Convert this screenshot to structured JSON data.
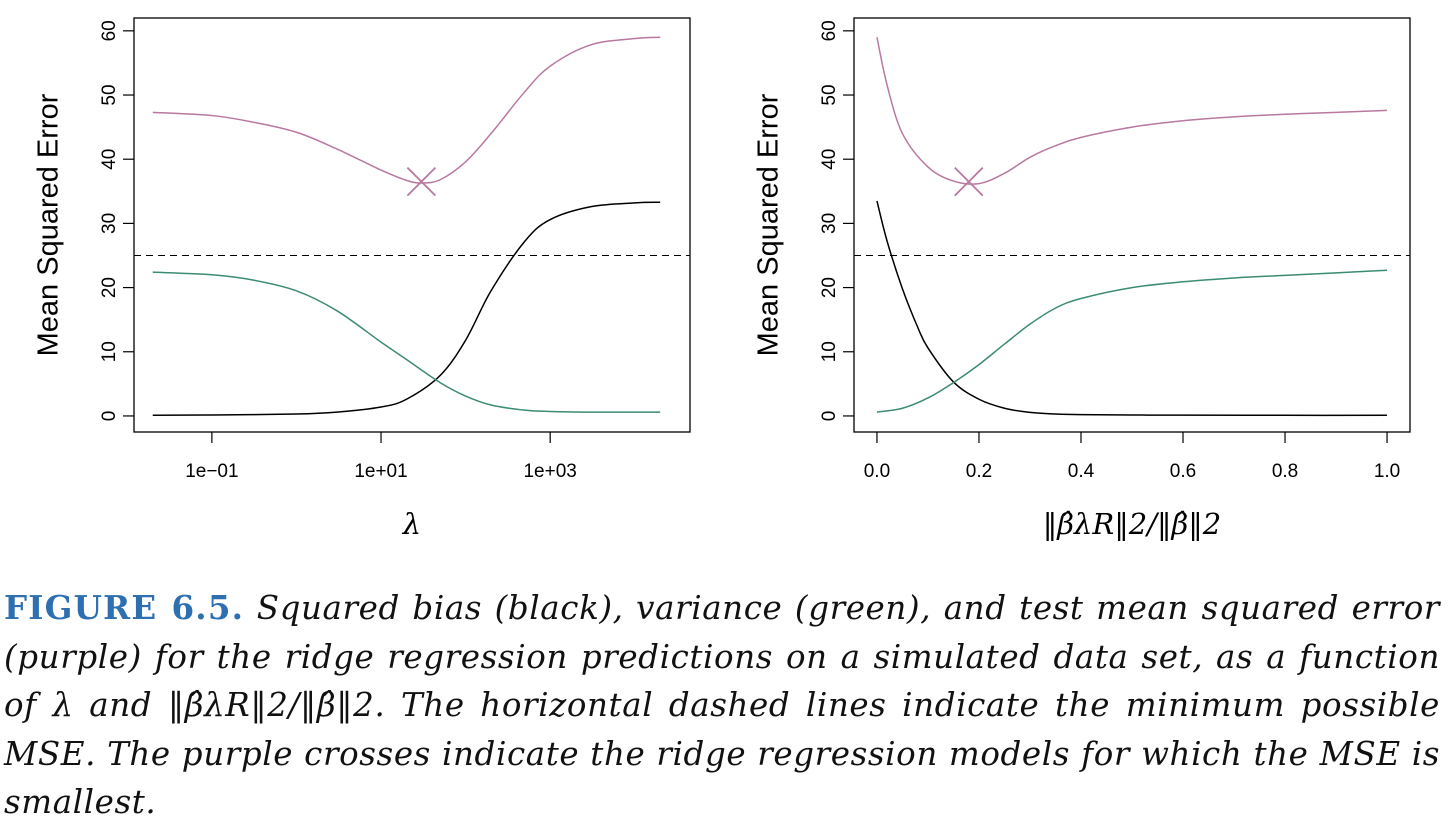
{
  "chart_data": [
    {
      "type": "line",
      "ylabel": "Mean Squared Error",
      "xlabel": "λ",
      "x_scale": "log10",
      "xlim": [
        0.012,
        45000
      ],
      "ylim": [
        -2.5,
        62
      ],
      "x_ticks": [
        0.1,
        10,
        1000
      ],
      "x_tick_labels": [
        "1e−01",
        "1e+01",
        "1e+03"
      ],
      "y_ticks": [
        0,
        10,
        20,
        30,
        40,
        50,
        60
      ],
      "y_tick_labels": [
        "0",
        "10",
        "20",
        "30",
        "40",
        "50",
        "60"
      ],
      "dashed_hline": 25,
      "min_marker": {
        "x": 30,
        "y": 36.5,
        "color": "#b9789f"
      },
      "series": [
        {
          "color": "#b9789f",
          "x": [
            0.02,
            0.1,
            0.3,
            1,
            3,
            10,
            20,
            30,
            50,
            100,
            200,
            500,
            1000,
            3000,
            10000,
            20000
          ],
          "y": [
            47.3,
            46.8,
            45.8,
            44.2,
            41.6,
            38.3,
            36.7,
            36.3,
            36.8,
            39.6,
            44.0,
            50.5,
            54.5,
            57.8,
            58.8,
            59.0
          ]
        },
        {
          "color": "#000000",
          "x": [
            0.02,
            0.1,
            1,
            3,
            10,
            20,
            50,
            100,
            200,
            500,
            1000,
            3000,
            10000,
            20000
          ],
          "y": [
            0.1,
            0.15,
            0.3,
            0.6,
            1.4,
            2.6,
            6.3,
            11.8,
            19.5,
            27.2,
            30.6,
            32.6,
            33.2,
            33.3
          ]
        },
        {
          "color": "#3c8c6e",
          "x": [
            0.02,
            0.1,
            0.3,
            1,
            3,
            10,
            20,
            50,
            100,
            200,
            500,
            1000,
            3000,
            10000,
            20000
          ],
          "y": [
            22.4,
            22.0,
            21.2,
            19.5,
            16.4,
            11.5,
            8.8,
            5.2,
            3.1,
            1.7,
            0.9,
            0.7,
            0.6,
            0.6,
            0.6
          ]
        }
      ]
    },
    {
      "type": "line",
      "ylabel": "Mean Squared Error",
      "xlabel": "‖β̂λR‖2/‖β̂‖2",
      "x_scale": "linear",
      "xlim": [
        -0.045,
        1.045
      ],
      "ylim": [
        -2.5,
        62
      ],
      "x_ticks": [
        0.0,
        0.2,
        0.4,
        0.6,
        0.8,
        1.0
      ],
      "x_tick_labels": [
        "0.0",
        "0.2",
        "0.4",
        "0.6",
        "0.8",
        "1.0"
      ],
      "y_ticks": [
        0,
        10,
        20,
        30,
        40,
        50,
        60
      ],
      "y_tick_labels": [
        "0",
        "10",
        "20",
        "30",
        "40",
        "50",
        "60"
      ],
      "dashed_hline": 25,
      "min_marker": {
        "x": 0.18,
        "y": 36.5,
        "color": "#b9789f"
      },
      "series": [
        {
          "color": "#b9789f",
          "x": [
            0.0,
            0.02,
            0.05,
            0.1,
            0.15,
            0.2,
            0.25,
            0.3,
            0.35,
            0.4,
            0.5,
            0.6,
            0.7,
            0.8,
            0.9,
            1.0
          ],
          "y": [
            59.0,
            51.5,
            44.0,
            38.8,
            36.6,
            36.2,
            37.8,
            40.3,
            42.1,
            43.4,
            45.0,
            46.0,
            46.6,
            47.0,
            47.3,
            47.6
          ]
        },
        {
          "color": "#000000",
          "x": [
            0.0,
            0.02,
            0.05,
            0.08,
            0.1,
            0.15,
            0.2,
            0.25,
            0.3,
            0.35,
            0.4,
            0.5,
            0.6,
            0.8,
            1.0
          ],
          "y": [
            33.5,
            27.2,
            19.8,
            13.8,
            10.6,
            5.3,
            2.6,
            1.2,
            0.55,
            0.3,
            0.2,
            0.15,
            0.12,
            0.1,
            0.1
          ]
        },
        {
          "color": "#3c8c6e",
          "x": [
            0.0,
            0.05,
            0.1,
            0.15,
            0.2,
            0.25,
            0.3,
            0.35,
            0.4,
            0.5,
            0.6,
            0.7,
            0.8,
            0.9,
            1.0
          ],
          "y": [
            0.6,
            1.2,
            2.8,
            5.2,
            8.0,
            11.2,
            14.3,
            16.8,
            18.3,
            20.0,
            20.9,
            21.5,
            21.9,
            22.3,
            22.7
          ]
        }
      ]
    }
  ],
  "caption": {
    "label": "FIGURE 6.5.",
    "part1": " Squared bias (black), variance (green), and test mean squared error (purple) for the ridge regression predictions on a simulated data set, as a function of ",
    "lambda": "λ",
    "and": " and ",
    "norm_expr": "‖β̂λR‖2/‖β̂‖2",
    "part2": ". The horizontal dashed lines indicate the minimum possible MSE. The purple crosses indicate the ridge regression models for which the MSE is smallest."
  }
}
